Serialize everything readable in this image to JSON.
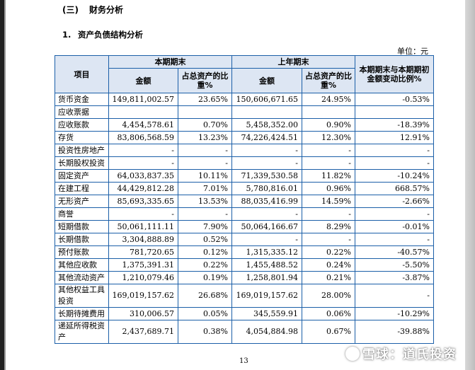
{
  "section": {
    "number": "(三)",
    "title": "财务分析"
  },
  "subsection": {
    "number": "1.",
    "title": "资产负债结构分析"
  },
  "unit_label": "单位：元",
  "table": {
    "header": {
      "item": "项目",
      "current_period": "本期期末",
      "prior_period": "上年期末",
      "change": "本期期末与本期期初金额变动比例%",
      "amount": "金额",
      "ratio": "占总资产的比重%"
    },
    "rows": [
      {
        "name": "货币资金",
        "cur_amt": "149,811,002.57",
        "cur_pct": "23.65%",
        "prev_amt": "150,606,671.65",
        "prev_pct": "24.95%",
        "change": "-0.53%"
      },
      {
        "name": "应收票据",
        "cur_amt": "",
        "cur_pct": "",
        "prev_amt": "",
        "prev_pct": "",
        "change": ""
      },
      {
        "name": "应收账款",
        "cur_amt": "4,454,578.61",
        "cur_pct": "0.70%",
        "prev_amt": "5,458,352.00",
        "prev_pct": "0.90%",
        "change": "-18.39%"
      },
      {
        "name": "存货",
        "cur_amt": "83,806,568.59",
        "cur_pct": "13.23%",
        "prev_amt": "74,226,424.51",
        "prev_pct": "12.30%",
        "change": "12.91%"
      },
      {
        "name": "投资性房地产",
        "cur_amt": "-",
        "cur_pct": "-",
        "prev_amt": "-",
        "prev_pct": "-",
        "change": "-"
      },
      {
        "name": "长期股权投资",
        "cur_amt": "-",
        "cur_pct": "-",
        "prev_amt": "-",
        "prev_pct": "-",
        "change": "-"
      },
      {
        "name": "固定资产",
        "cur_amt": "64,033,837.35",
        "cur_pct": "10.11%",
        "prev_amt": "71,339,530.58",
        "prev_pct": "11.82%",
        "change": "-10.24%"
      },
      {
        "name": "在建工程",
        "cur_amt": "44,429,812.28",
        "cur_pct": "7.01%",
        "prev_amt": "5,780,816.01",
        "prev_pct": "0.96%",
        "change": "668.57%"
      },
      {
        "name": "无形资产",
        "cur_amt": "85,693,335.65",
        "cur_pct": "13.53%",
        "prev_amt": "88,035,416.99",
        "prev_pct": "14.59%",
        "change": "-2.66%"
      },
      {
        "name": "商誉",
        "cur_amt": "-",
        "cur_pct": "-",
        "prev_amt": "-",
        "prev_pct": "-",
        "change": "-"
      },
      {
        "name": "短期借款",
        "cur_amt": "50,061,111.11",
        "cur_pct": "7.90%",
        "prev_amt": "50,064,166.67",
        "prev_pct": "8.29%",
        "change": "-0.01%"
      },
      {
        "name": "长期借款",
        "cur_amt": "3,304,888.89",
        "cur_pct": "0.52%",
        "prev_amt": "-",
        "prev_pct": "-",
        "change": "-"
      },
      {
        "name": "预付账款",
        "cur_amt": "781,720.65",
        "cur_pct": "0.12%",
        "prev_amt": "1,315,335.12",
        "prev_pct": "0.22%",
        "change": "-40.57%"
      },
      {
        "name": "其他应收款",
        "cur_amt": "1,375,391.31",
        "cur_pct": "0.22%",
        "prev_amt": "1,455,488.52",
        "prev_pct": "0.24%",
        "change": "-5.50%"
      },
      {
        "name": "其他流动资产",
        "cur_amt": "1,210,079.46",
        "cur_pct": "0.19%",
        "prev_amt": "1,258,801.94",
        "prev_pct": "0.21%",
        "change": "-3.87%"
      },
      {
        "name": "其他权益工具投资",
        "cur_amt": "169,019,157.62",
        "cur_pct": "26.68%",
        "prev_amt": "169,019,157.62",
        "prev_pct": "28.00%",
        "change": "-"
      },
      {
        "name": "长期待摊费用",
        "cur_amt": "310,006.57",
        "cur_pct": "0.05%",
        "prev_amt": "345,559.91",
        "prev_pct": "0.06%",
        "change": "-10.29%"
      },
      {
        "name": "递延所得税资产",
        "cur_amt": "2,437,689.71",
        "cur_pct": "0.38%",
        "prev_amt": "4,054,884.98",
        "prev_pct": "0.67%",
        "change": "-39.88%"
      }
    ]
  },
  "page_number": "13",
  "watermark": "雪球：道氏投资",
  "colors": {
    "border": "#1b5fa8",
    "header_bg": "#dde6f3"
  }
}
